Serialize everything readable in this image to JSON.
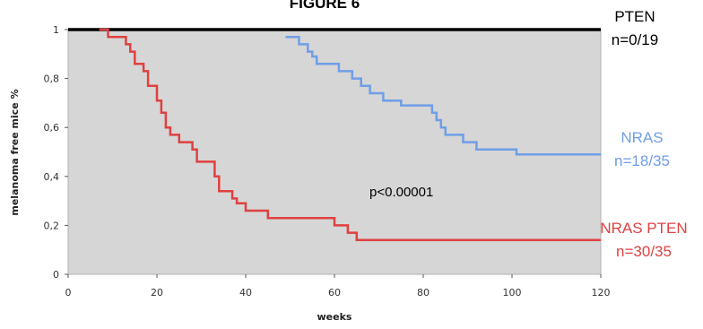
{
  "chart_data": {
    "type": "line",
    "title": "FIGURE 6",
    "xlabel": "weeks",
    "ylabel": "melanoma free mice %",
    "xlim": [
      0,
      120
    ],
    "ylim": [
      0,
      1
    ],
    "x_ticks": [
      "0",
      "20",
      "40",
      "60",
      "80",
      "100",
      "120"
    ],
    "y_ticks": [
      "0",
      "0,2",
      "0,4",
      "0,6",
      "0,8",
      "1"
    ],
    "grid": false,
    "annotation": "p<0.00001",
    "series": [
      {
        "name": "PTEN",
        "label_line1": "PTEN",
        "label_line2": "n=0/19",
        "color": "#000000",
        "x": [
          0,
          120
        ],
        "y": [
          1,
          1
        ]
      },
      {
        "name": "NRAS",
        "label_line1": "NRAS",
        "label_line2": "n=18/35",
        "color": "#6f9ee6",
        "x": [
          49,
          52,
          54,
          55,
          56,
          58,
          61,
          64,
          66,
          68,
          71,
          75,
          82,
          83,
          84,
          85,
          86,
          89,
          92,
          93,
          101,
          120
        ],
        "y": [
          0.97,
          0.94,
          0.91,
          0.89,
          0.86,
          0.86,
          0.83,
          0.8,
          0.77,
          0.74,
          0.71,
          0.69,
          0.66,
          0.63,
          0.6,
          0.57,
          0.57,
          0.54,
          0.51,
          0.51,
          0.49,
          0.49
        ]
      },
      {
        "name": "NRAS PTEN",
        "label_line1": "NRAS PTEN",
        "label_line2": "n=30/35",
        "color": "#e04040",
        "x": [
          7,
          9,
          13,
          14,
          15,
          17,
          18,
          20,
          21,
          22,
          23,
          25,
          27,
          28,
          29,
          32,
          33,
          34,
          37,
          38,
          40,
          42,
          45,
          60,
          63,
          65,
          66,
          120
        ],
        "y": [
          1.0,
          0.97,
          0.94,
          0.91,
          0.86,
          0.83,
          0.77,
          0.71,
          0.66,
          0.6,
          0.57,
          0.54,
          0.54,
          0.51,
          0.46,
          0.46,
          0.4,
          0.34,
          0.31,
          0.29,
          0.26,
          0.26,
          0.23,
          0.2,
          0.17,
          0.14,
          0.14,
          0.14
        ]
      }
    ]
  }
}
